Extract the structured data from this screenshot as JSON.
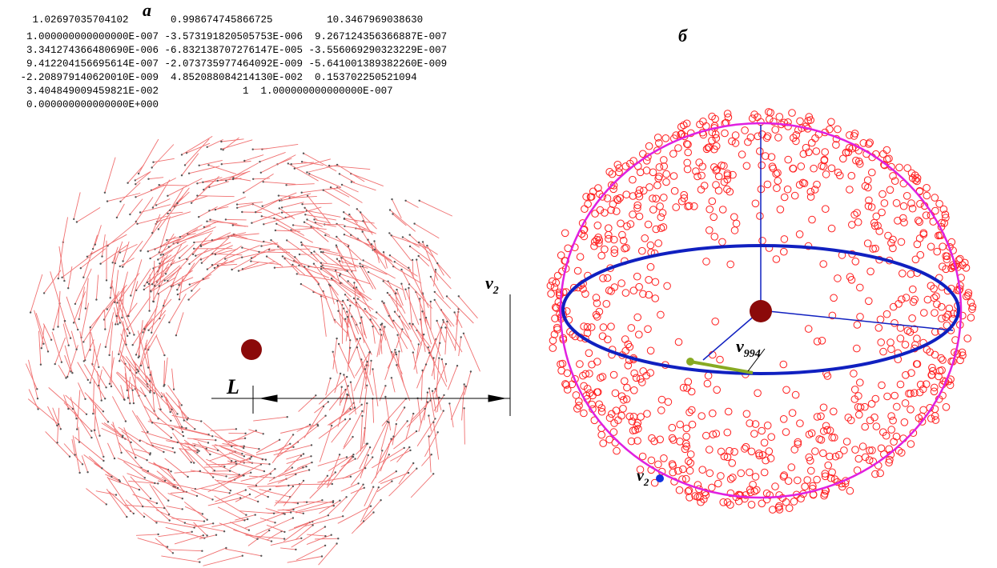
{
  "panel_a": {
    "label": "а",
    "numeric_dump": [
      "   1.02697035704102       0.998674745866725         10.3467969038630",
      "  1.000000000000000E-007 -3.573191820505753E-006  9.267124356366887E-007",
      "  3.341274366480690E-006 -6.832138707276147E-005 -3.556069290323229E-007",
      "  9.412204156695614E-007 -2.073735977464092E-009 -5.641001389382260E-009",
      " -2.208979140620010E-009  4.852088084214130E-002  0.153702250521094",
      "  3.404849009459821E-002              1  1.000000000000000E-007",
      "  0.000000000000000E+000"
    ],
    "vector_color": "#f07070",
    "center_mass_color": "#8b0a0a",
    "dimension_L": {
      "base": "L"
    },
    "dimension_v2": {
      "base": "v",
      "subscript": "2"
    }
  },
  "panel_b": {
    "label": "б",
    "sphere_color": "#e020e0",
    "equator_color": "#1020c0",
    "point_color": "#ff2020",
    "highlight_color": "#88aa22",
    "v994": {
      "base": "v",
      "subscript": "994"
    },
    "v2": {
      "base": "v",
      "subscript": "2"
    }
  }
}
